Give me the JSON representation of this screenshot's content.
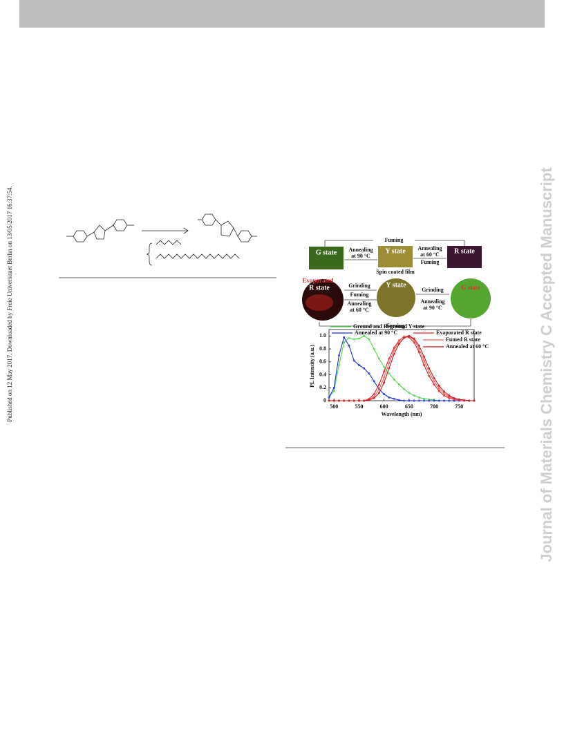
{
  "published_note": "Published on 12 May 2017. Downloaded by Freie Universitaet Berlin on 13/05/2017 16:37:54.",
  "watermark": "Journal of Materials Chemistry C Accepted Manuscript",
  "figure": {
    "top_row": {
      "fuming_top": "Fuming",
      "g_state": "G state",
      "annealing_90": "Annealing",
      "at_90": "at 90 °C",
      "y_state": "Y state",
      "annealing_60": "Annealing",
      "at_60": "at 60 °C",
      "fuming_mid": "Fuming",
      "r_state": "R state",
      "caption": "Spin coated film"
    },
    "bottom_row": {
      "evaporated": "Evaporated",
      "r_state": "R state",
      "grinding_left": "Grinding",
      "fuming_left": "Fuming",
      "annealing_60": "Annealing",
      "at_60": "at 60 °C",
      "y_state": "Y state",
      "grinding_right": "Grinding",
      "annealing_90": "Annealing",
      "at_90": "at 90 °C",
      "g_state": "G state",
      "fuming_bottom": "Fuming"
    }
  },
  "chart_data": {
    "type": "line",
    "x_label": "Wavelength (nm)",
    "y_label": "PL Intensity (a.u.)",
    "x": [
      490,
      500,
      510,
      520,
      530,
      540,
      550,
      560,
      570,
      580,
      590,
      600,
      610,
      620,
      630,
      640,
      650,
      660,
      670,
      680,
      690,
      700,
      710,
      720,
      730,
      740,
      750,
      760,
      770,
      780
    ],
    "xlim": [
      490,
      780
    ],
    "ylim": [
      0,
      1.1
    ],
    "xticks": [
      500,
      550,
      600,
      650,
      700,
      750
    ],
    "yticks": [
      0,
      0.2,
      0.4,
      0.6,
      0.8,
      {
        "value": 1,
        "label": "1.0"
      }
    ],
    "series": [
      {
        "name": "Ground and Reground Y state",
        "color": "#4cd64c",
        "values": [
          0.05,
          0.15,
          0.55,
          0.9,
          0.97,
          0.95,
          0.96,
          1.0,
          0.95,
          0.8,
          0.65,
          0.52,
          0.42,
          0.33,
          0.25,
          0.18,
          0.12,
          0.08,
          0.05,
          0.03,
          0.02,
          0.01,
          0,
          0,
          0,
          0,
          0,
          0,
          0,
          0
        ]
      },
      {
        "name": "Annealed at 90 °C",
        "color": "#1f2fd6",
        "values": [
          0.05,
          0.2,
          0.7,
          0.98,
          0.85,
          0.62,
          0.55,
          0.5,
          0.42,
          0.3,
          0.18,
          0.1,
          0.05,
          0.03,
          0.01,
          0,
          0,
          0,
          0,
          0,
          0,
          0,
          0,
          0,
          0,
          0,
          0,
          0,
          0,
          0
        ]
      },
      {
        "name": "Evaporated R state",
        "color": "#e02020",
        "values": [
          0,
          0,
          0,
          0,
          0,
          0,
          0,
          0,
          0.03,
          0.1,
          0.25,
          0.45,
          0.65,
          0.82,
          0.93,
          0.99,
          0.98,
          0.9,
          0.75,
          0.55,
          0.38,
          0.25,
          0.15,
          0.08,
          0.04,
          0.02,
          0.01,
          0,
          0,
          0
        ]
      },
      {
        "name": "Fumed R state",
        "color": "#f06060",
        "values": [
          0,
          0,
          0,
          0,
          0,
          0,
          0,
          0,
          0.02,
          0.06,
          0.18,
          0.36,
          0.58,
          0.78,
          0.92,
          0.99,
          1.0,
          0.94,
          0.8,
          0.62,
          0.44,
          0.3,
          0.19,
          0.11,
          0.06,
          0.03,
          0.01,
          0,
          0,
          0
        ]
      },
      {
        "name": "Annealed at 60 °C",
        "color": "#c01818",
        "values": [
          0,
          0,
          0,
          0,
          0,
          0,
          0,
          0,
          0.01,
          0.04,
          0.12,
          0.28,
          0.5,
          0.72,
          0.88,
          0.97,
          1.0,
          0.96,
          0.85,
          0.68,
          0.5,
          0.35,
          0.23,
          0.14,
          0.08,
          0.04,
          0.02,
          0.01,
          0,
          0
        ]
      }
    ]
  }
}
